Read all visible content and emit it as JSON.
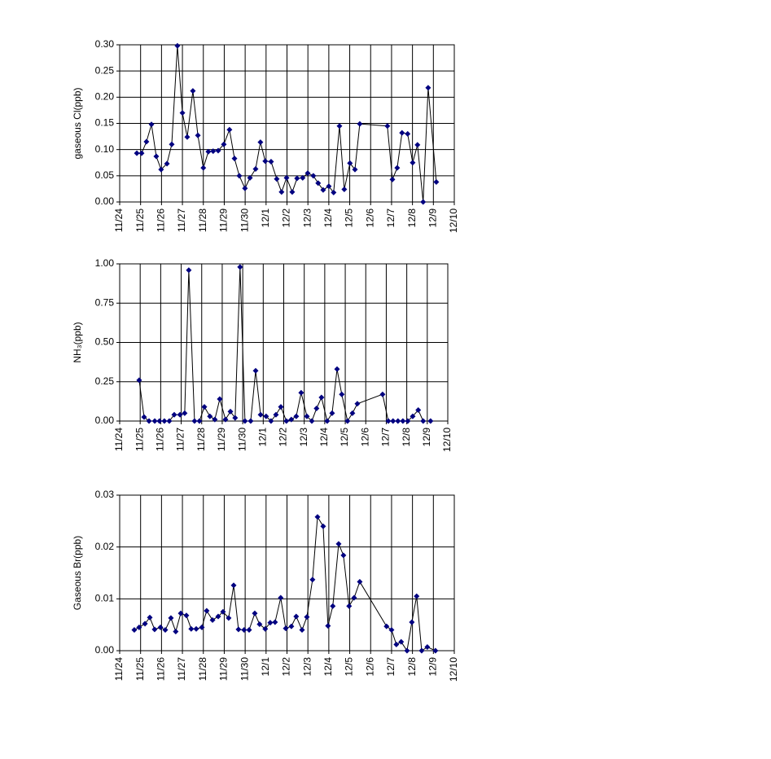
{
  "chart_data": [
    {
      "type": "line",
      "y_label": "gaseous Cl(ppb)",
      "color": "#000080",
      "grid": true,
      "x": [
        0.82,
        1.05,
        1.28,
        1.52,
        1.75,
        1.98,
        2.26,
        2.49,
        2.76,
        3.0,
        3.23,
        3.5,
        3.74,
        4.0,
        4.24,
        4.47,
        4.71,
        4.98,
        5.25,
        5.49,
        5.72,
        5.99,
        6.23,
        6.5,
        6.73,
        6.96,
        7.24,
        7.51,
        7.74,
        7.98,
        8.25,
        8.48,
        8.75,
        8.99,
        9.26,
        9.49,
        9.73,
        10.0,
        10.23,
        10.51,
        10.74,
        11.01,
        11.25,
        11.48,
        12.8,
        13.04,
        13.27,
        13.5,
        13.77,
        14.01,
        14.24,
        14.51,
        14.75,
        15.14
      ],
      "values": [
        0.093,
        0.093,
        0.115,
        0.148,
        0.087,
        0.062,
        0.073,
        0.11,
        0.298,
        0.17,
        0.124,
        0.212,
        0.127,
        0.065,
        0.096,
        0.097,
        0.098,
        0.11,
        0.138,
        0.083,
        0.05,
        0.026,
        0.046,
        0.063,
        0.114,
        0.078,
        0.077,
        0.044,
        0.019,
        0.046,
        0.019,
        0.045,
        0.046,
        0.055,
        0.05,
        0.036,
        0.023,
        0.03,
        0.018,
        0.145,
        0.024,
        0.074,
        0.062,
        0.149,
        0.145,
        0.043,
        0.065,
        0.132,
        0.13,
        0.075,
        0.109,
        0,
        0.218,
        0.038
      ],
      "xlim": [
        0,
        16
      ],
      "xticks": [
        {
          "value": 0,
          "label": "11/24"
        },
        {
          "value": 1,
          "label": "11/25"
        },
        {
          "value": 2,
          "label": "11/26"
        },
        {
          "value": 3,
          "label": "11/27"
        },
        {
          "value": 4,
          "label": "11/28"
        },
        {
          "value": 5,
          "label": "11/29"
        },
        {
          "value": 6,
          "label": "11/30"
        },
        {
          "value": 7,
          "label": "12/1"
        },
        {
          "value": 8,
          "label": "12/2"
        },
        {
          "value": 9,
          "label": "12/3"
        },
        {
          "value": 10,
          "label": "12/4"
        },
        {
          "value": 11,
          "label": "12/5"
        },
        {
          "value": 12,
          "label": "12/6"
        },
        {
          "value": 13,
          "label": "12/7"
        },
        {
          "value": 14,
          "label": "12/8"
        },
        {
          "value": 15,
          "label": "12/9"
        },
        {
          "value": 16,
          "label": "12/10"
        }
      ],
      "ylim": [
        0,
        0.3
      ],
      "yticks": [
        {
          "value": 0,
          "label": "0.00"
        },
        0.05,
        {
          "value": 0.1,
          "label": "0.10"
        },
        0.15,
        {
          "value": 0.2,
          "label": "0.20"
        },
        0.25,
        {
          "value": 0.3,
          "label": "0.30"
        }
      ]
    },
    {
      "type": "line",
      "y_label": "NH₃(ppb)",
      "color": "#000080",
      "grid": true,
      "x": [
        0.95,
        1.19,
        1.43,
        1.71,
        1.94,
        2.18,
        2.42,
        2.66,
        2.94,
        3.17,
        3.37,
        3.65,
        3.89,
        4.13,
        4.4,
        4.64,
        4.88,
        5.16,
        5.4,
        5.63,
        5.87,
        6.11,
        6.39,
        6.63,
        6.87,
        7.14,
        7.38,
        7.62,
        7.86,
        8.13,
        8.37,
        8.61,
        8.85,
        9.13,
        9.37,
        9.6,
        9.84,
        10.12,
        10.36,
        10.6,
        10.83,
        11.11,
        11.35,
        11.59,
        12.82,
        13.1,
        13.33,
        13.57,
        13.81,
        14.05,
        14.29,
        14.56,
        14.8,
        15.16
      ],
      "values": [
        0.26,
        0.025,
        0,
        0,
        0,
        0,
        0,
        0.04,
        0.04,
        0.05,
        0.96,
        0,
        0,
        0.09,
        0.03,
        0.01,
        0.14,
        0.01,
        0.06,
        0.02,
        0.98,
        0,
        0,
        0.32,
        0.04,
        0.03,
        0,
        0.04,
        0.09,
        0,
        0.01,
        0.03,
        0.18,
        0.03,
        0,
        0.08,
        0.15,
        0,
        0.05,
        0.33,
        0.17,
        0,
        0.05,
        0.11,
        0.17,
        0,
        0,
        0,
        0,
        0,
        0.03,
        0.07,
        0,
        0
      ],
      "xlim": [
        0,
        16
      ],
      "xticks": [
        {
          "value": 0,
          "label": "11/24"
        },
        {
          "value": 1,
          "label": "11/25"
        },
        {
          "value": 2,
          "label": "11/26"
        },
        {
          "value": 3,
          "label": "11/27"
        },
        {
          "value": 4,
          "label": "11/28"
        },
        {
          "value": 5,
          "label": "11/29"
        },
        {
          "value": 6,
          "label": "11/30"
        },
        {
          "value": 7,
          "label": "12/1"
        },
        {
          "value": 8,
          "label": "12/2"
        },
        {
          "value": 9,
          "label": "12/3"
        },
        {
          "value": 10,
          "label": "12/4"
        },
        {
          "value": 11,
          "label": "12/5"
        },
        {
          "value": 12,
          "label": "12/6"
        },
        {
          "value": 13,
          "label": "12/7"
        },
        {
          "value": 14,
          "label": "12/8"
        },
        {
          "value": 15,
          "label": "12/9"
        },
        {
          "value": 16,
          "label": "12/10"
        }
      ],
      "ylim": [
        0,
        1
      ],
      "yticks": [
        {
          "value": 0,
          "label": "0.00"
        },
        0.25,
        {
          "value": 0.5,
          "label": "0.50"
        },
        0.75,
        {
          "value": 1,
          "label": "1.00"
        }
      ]
    },
    {
      "type": "line",
      "y_label": "Gaseous Br(ppb)",
      "color": "#000080",
      "grid": true,
      "x": [
        0.7,
        0.93,
        1.21,
        1.44,
        1.67,
        1.95,
        2.18,
        2.45,
        2.68,
        2.92,
        3.19,
        3.42,
        3.66,
        3.93,
        4.16,
        4.44,
        4.71,
        4.94,
        5.21,
        5.45,
        5.68,
        5.95,
        6.19,
        6.46,
        6.69,
        6.96,
        7.2,
        7.43,
        7.7,
        7.94,
        8.21,
        8.44,
        8.72,
        8.95,
        9.22,
        9.46,
        9.73,
        9.96,
        10.19,
        10.47,
        10.7,
        10.97,
        11.21,
        11.48,
        12.76,
        13.0,
        13.23,
        13.46,
        13.74,
        13.97,
        14.2,
        14.44,
        14.71,
        15.1
      ],
      "values": [
        0.004,
        0.0045,
        0.0052,
        0.0064,
        0.0041,
        0.0045,
        0.004,
        0.0063,
        0.0037,
        0.0072,
        0.0068,
        0.0042,
        0.0042,
        0.0045,
        0.0077,
        0.0059,
        0.0066,
        0.0075,
        0.0063,
        0.0126,
        0.0041,
        0.004,
        0.004,
        0.0072,
        0.0051,
        0.0042,
        0.0054,
        0.0055,
        0.0102,
        0.0043,
        0.0047,
        0.0066,
        0.004,
        0.0065,
        0.0137,
        0.0258,
        0.024,
        0.0048,
        0.0086,
        0.0206,
        0.0184,
        0.0086,
        0.0102,
        0.0133,
        0.0047,
        0.004,
        0.0012,
        0.0017,
        0,
        0.0055,
        0.0105,
        0,
        0.0007,
        0
      ],
      "xlim": [
        0,
        16
      ],
      "xticks": [
        {
          "value": 0,
          "label": "11/24"
        },
        {
          "value": 1,
          "label": "11/25"
        },
        {
          "value": 2,
          "label": "11/26"
        },
        {
          "value": 3,
          "label": "11/27"
        },
        {
          "value": 4,
          "label": "11/28"
        },
        {
          "value": 5,
          "label": "11/29"
        },
        {
          "value": 6,
          "label": "11/30"
        },
        {
          "value": 7,
          "label": "12/1"
        },
        {
          "value": 8,
          "label": "12/2"
        },
        {
          "value": 9,
          "label": "12/3"
        },
        {
          "value": 10,
          "label": "12/4"
        },
        {
          "value": 11,
          "label": "12/5"
        },
        {
          "value": 12,
          "label": "12/6"
        },
        {
          "value": 13,
          "label": "12/7"
        },
        {
          "value": 14,
          "label": "12/8"
        },
        {
          "value": 15,
          "label": "12/9"
        },
        {
          "value": 16,
          "label": "12/10"
        }
      ],
      "ylim": [
        0,
        0.03
      ],
      "yticks": [
        {
          "value": 0,
          "label": "0.00"
        },
        0.01,
        0.02,
        0.03
      ]
    }
  ]
}
